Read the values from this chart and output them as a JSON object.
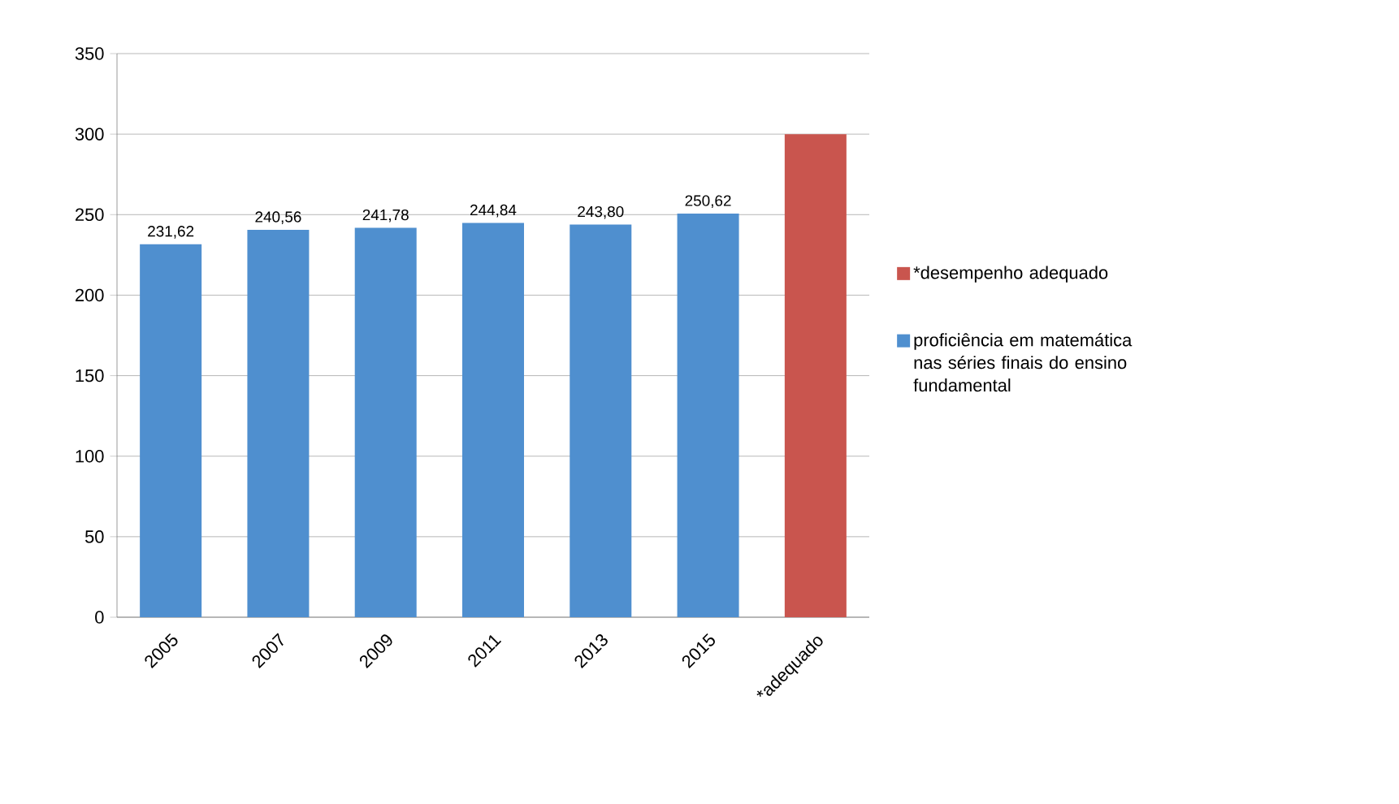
{
  "chart_data": {
    "type": "bar",
    "categories": [
      "2005",
      "2007",
      "2009",
      "2011",
      "2013",
      "2015",
      "*adequado"
    ],
    "series": [
      {
        "name": "*desempenho adequado",
        "color": "#c9554e",
        "values": [
          null,
          null,
          null,
          null,
          null,
          null,
          300
        ]
      },
      {
        "name": "proficiência em matemática nas séries finais do ensino fundamental",
        "color": "#4f8fcf",
        "values": [
          231.62,
          240.56,
          241.78,
          244.84,
          243.8,
          250.62,
          null
        ],
        "value_labels": [
          "231,62",
          "240,56",
          "241,78",
          "244,84",
          "243,80",
          "250,62",
          null
        ]
      }
    ],
    "ylim": [
      0,
      350
    ],
    "yticks": [
      0,
      50,
      100,
      150,
      200,
      250,
      300,
      350
    ],
    "grid": "y",
    "legend": "right"
  }
}
